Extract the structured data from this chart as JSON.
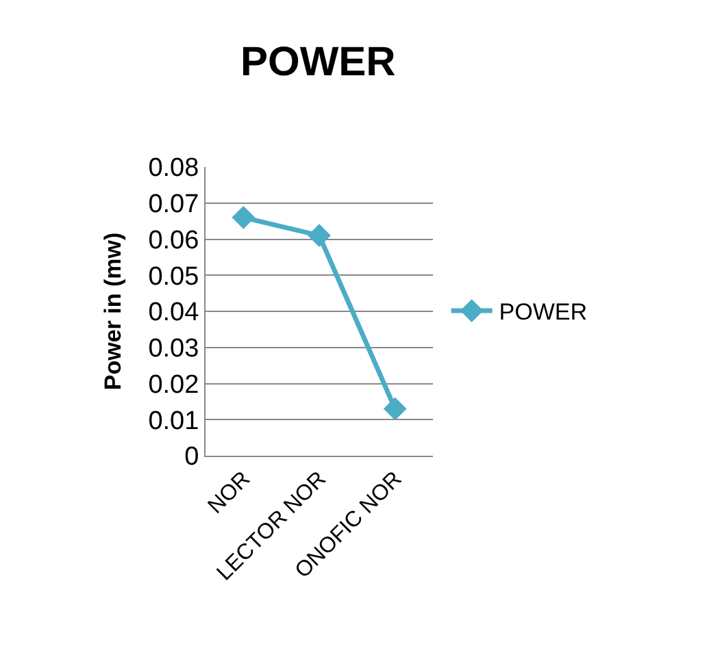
{
  "chart_data": {
    "type": "line",
    "title": "POWER",
    "ylabel": "Power in (mw)",
    "categories": [
      "NOR",
      "LECTOR NOR",
      "ONOFIC NOR"
    ],
    "series": [
      {
        "name": "POWER",
        "color": "#4bacc6",
        "values": [
          0.066,
          0.061,
          0.013
        ]
      }
    ],
    "ylim": [
      0,
      0.08
    ],
    "yticks": [
      0,
      0.01,
      0.02,
      0.03,
      0.04,
      0.05,
      0.06,
      0.07,
      0.08
    ],
    "grid": "y",
    "legend": "right",
    "marker": "diamond",
    "line_style": "solid"
  }
}
